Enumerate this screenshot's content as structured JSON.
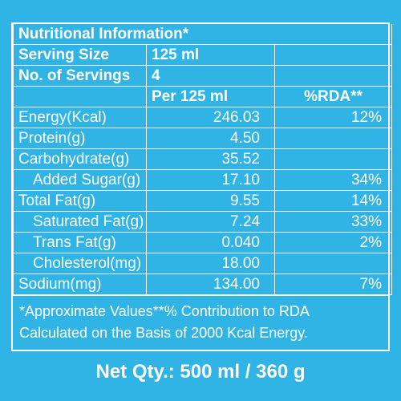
{
  "title": "Nutritional Information*",
  "serving_size_label": "Serving Size",
  "serving_size_value": "125 ml",
  "servings_label": "No. of Servings",
  "servings_value": "4",
  "col_per": "Per 125 ml",
  "col_rda": "%RDA**",
  "rows": [
    {
      "name": "Energy(Kcal)",
      "value": "246.03",
      "rda": "12%"
    },
    {
      "name": "Protein(g)",
      "value": "4.50",
      "rda": ""
    },
    {
      "name": "Carbohydrate(g)",
      "value": "35.52",
      "rda": ""
    },
    {
      "name": "Added Sugar(g)",
      "value": "17.10",
      "rda": "34%"
    },
    {
      "name": "Total Fat(g)",
      "value": "9.55",
      "rda": "14%"
    },
    {
      "name": "Saturated Fat(g)",
      "value": "7.24",
      "rda": "33%"
    },
    {
      "name": "Trans Fat(g)",
      "value": "0.040",
      "rda": "2%"
    },
    {
      "name": "Cholesterol(mg)",
      "value": "18.00",
      "rda": ""
    },
    {
      "name": "Sodium(mg)",
      "value": "134.00",
      "rda": "7%"
    }
  ],
  "footnote_line1": "*Approximate Values**% Contribution to RDA",
  "footnote_line2": "Calculated on the Basis of 2000 Kcal Energy.",
  "net_qty": "Net Qty.: 500 ml / 360 g",
  "colors": {
    "background": "#30b4e6",
    "text": "#ffffff"
  }
}
